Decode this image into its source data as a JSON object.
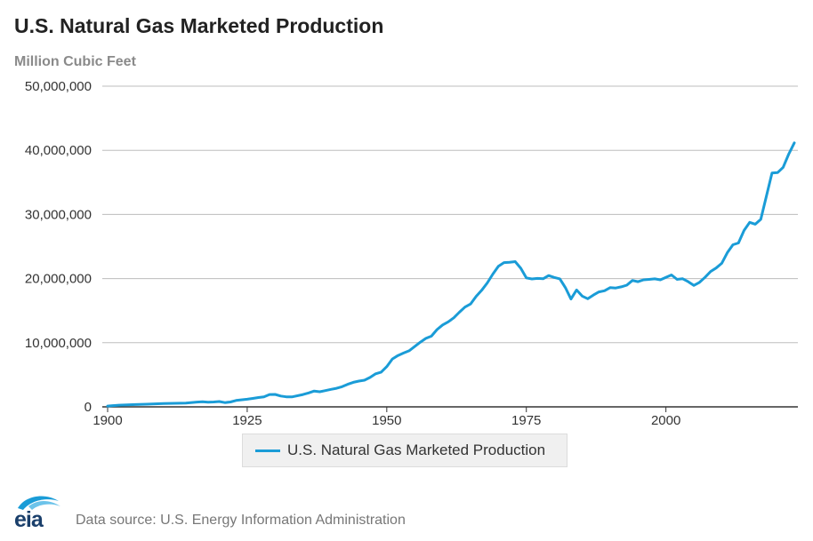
{
  "title": "U.S. Natural Gas Marketed Production",
  "units_label": "Million Cubic Feet",
  "source": "Data source: U.S. Energy Information Administration",
  "logo_text": "eia",
  "colors": {
    "line": "#1a9cd7",
    "grid": "#bdbdbd",
    "axis": "#333333",
    "logo": "#1a3f6b"
  },
  "legend": {
    "label": "U.S. Natural Gas Marketed Production"
  },
  "chart_data": {
    "type": "line",
    "title": "U.S. Natural Gas Marketed Production",
    "ylabel": "Million Cubic Feet",
    "xlim": [
      1900,
      2023
    ],
    "ylim": [
      0,
      50000000
    ],
    "x_ticks": [
      1900,
      1925,
      1950,
      1975,
      2000
    ],
    "y_ticks": [
      0,
      10000000,
      20000000,
      30000000,
      40000000,
      50000000
    ],
    "y_tick_labels": [
      "0",
      "10,000,000",
      "20,000,000",
      "30,000,000",
      "40,000,000",
      "50,000,000"
    ],
    "grid": "horizontal",
    "legend_position": "bottom",
    "series": [
      {
        "name": "U.S. Natural Gas Marketed Production",
        "points": [
          [
            1900,
            130000
          ],
          [
            1902,
            270000
          ],
          [
            1905,
            360000
          ],
          [
            1907,
            410000
          ],
          [
            1910,
            510000
          ],
          [
            1912,
            560000
          ],
          [
            1914,
            590000
          ],
          [
            1916,
            750000
          ],
          [
            1917,
            800000
          ],
          [
            1918,
            720000
          ],
          [
            1919,
            760000
          ],
          [
            1920,
            830000
          ],
          [
            1921,
            660000
          ],
          [
            1922,
            760000
          ],
          [
            1923,
            1000000
          ],
          [
            1925,
            1190000
          ],
          [
            1926,
            1310000
          ],
          [
            1927,
            1450000
          ],
          [
            1928,
            1570000
          ],
          [
            1929,
            1920000
          ],
          [
            1930,
            1940000
          ],
          [
            1931,
            1690000
          ],
          [
            1932,
            1560000
          ],
          [
            1933,
            1550000
          ],
          [
            1935,
            1920000
          ],
          [
            1936,
            2170000
          ],
          [
            1937,
            2470000
          ],
          [
            1938,
            2360000
          ],
          [
            1939,
            2540000
          ],
          [
            1940,
            2730000
          ],
          [
            1941,
            2890000
          ],
          [
            1942,
            3150000
          ],
          [
            1943,
            3520000
          ],
          [
            1944,
            3820000
          ],
          [
            1945,
            4010000
          ],
          [
            1946,
            4150000
          ],
          [
            1947,
            4580000
          ],
          [
            1948,
            5150000
          ],
          [
            1949,
            5420000
          ],
          [
            1950,
            6280000
          ],
          [
            1951,
            7460000
          ],
          [
            1952,
            8010000
          ],
          [
            1953,
            8400000
          ],
          [
            1954,
            8740000
          ],
          [
            1955,
            9410000
          ],
          [
            1956,
            10080000
          ],
          [
            1957,
            10680000
          ],
          [
            1958,
            11030000
          ],
          [
            1959,
            12050000
          ],
          [
            1960,
            12770000
          ],
          [
            1961,
            13250000
          ],
          [
            1962,
            13880000
          ],
          [
            1963,
            14750000
          ],
          [
            1964,
            15550000
          ],
          [
            1965,
            16040000
          ],
          [
            1966,
            17210000
          ],
          [
            1967,
            18170000
          ],
          [
            1968,
            19320000
          ],
          [
            1969,
            20700000
          ],
          [
            1970,
            21920000
          ],
          [
            1971,
            22490000
          ],
          [
            1972,
            22530000
          ],
          [
            1973,
            22650000
          ],
          [
            1974,
            21600000
          ],
          [
            1975,
            20110000
          ],
          [
            1976,
            19950000
          ],
          [
            1977,
            20030000
          ],
          [
            1978,
            19970000
          ],
          [
            1979,
            20470000
          ],
          [
            1980,
            20180000
          ],
          [
            1981,
            19960000
          ],
          [
            1982,
            18580000
          ],
          [
            1983,
            16820000
          ],
          [
            1984,
            18230000
          ],
          [
            1985,
            17270000
          ],
          [
            1986,
            16860000
          ],
          [
            1987,
            17430000
          ],
          [
            1988,
            17920000
          ],
          [
            1989,
            18100000
          ],
          [
            1990,
            18590000
          ],
          [
            1991,
            18530000
          ],
          [
            1992,
            18710000
          ],
          [
            1993,
            18980000
          ],
          [
            1994,
            19710000
          ],
          [
            1995,
            19510000
          ],
          [
            1996,
            19810000
          ],
          [
            1997,
            19870000
          ],
          [
            1998,
            19960000
          ],
          [
            1999,
            19800000
          ],
          [
            2000,
            20200000
          ],
          [
            2001,
            20570000
          ],
          [
            2002,
            19880000
          ],
          [
            2003,
            19970000
          ],
          [
            2004,
            19520000
          ],
          [
            2005,
            18930000
          ],
          [
            2006,
            19410000
          ],
          [
            2007,
            20200000
          ],
          [
            2008,
            21110000
          ],
          [
            2009,
            21650000
          ],
          [
            2010,
            22380000
          ],
          [
            2011,
            24040000
          ],
          [
            2012,
            25280000
          ],
          [
            2013,
            25560000
          ],
          [
            2014,
            27500000
          ],
          [
            2015,
            28770000
          ],
          [
            2016,
            28480000
          ],
          [
            2017,
            29240000
          ],
          [
            2018,
            32840000
          ],
          [
            2019,
            36450000
          ],
          [
            2020,
            36520000
          ],
          [
            2021,
            37340000
          ],
          [
            2022,
            39400000
          ],
          [
            2023,
            41160000
          ]
        ]
      }
    ]
  }
}
